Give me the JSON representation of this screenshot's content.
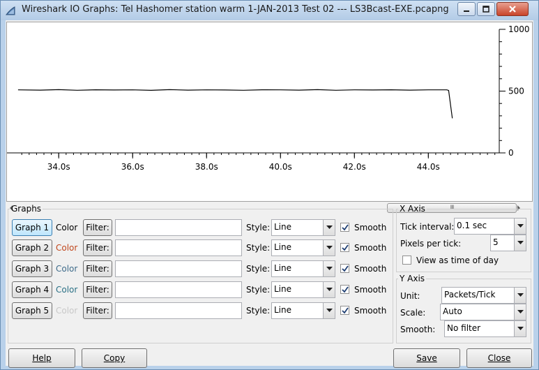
{
  "window": {
    "title": "Wireshark IO Graphs: Tel Hashomer station warm 1-JAN-2013 Test 02 --- LS3Bcast-EXE.pcapng",
    "minimize_icon": "minimize-icon",
    "maximize_icon": "maximize-icon",
    "close_icon": "close-icon"
  },
  "chart_data": {
    "type": "line",
    "x_ticks": [
      "34.0s",
      "36.0s",
      "38.0s",
      "40.0s",
      "42.0s",
      "44.0s"
    ],
    "y_ticks": [
      "1000",
      "500",
      "0"
    ],
    "xlim": [
      32.6,
      45.9
    ],
    "ylim": [
      0,
      1000
    ],
    "series": [
      {
        "color": "#000000",
        "x": [
          32.9,
          33.5,
          34.0,
          34.5,
          35.0,
          35.5,
          36.0,
          36.5,
          37.0,
          37.5,
          38.0,
          38.5,
          39.0,
          39.5,
          40.0,
          40.5,
          41.0,
          41.5,
          42.0,
          42.5,
          43.0,
          43.5,
          44.0,
          44.5,
          44.55,
          44.65
        ],
        "y": [
          510,
          508,
          512,
          507,
          511,
          509,
          510,
          506,
          512,
          508,
          510,
          509,
          507,
          511,
          510,
          508,
          512,
          507,
          510,
          509,
          511,
          508,
          510,
          510,
          505,
          280
        ]
      }
    ]
  },
  "scrollbar": {
    "thumb_grip": "III"
  },
  "graphs": {
    "legend": "Graphs",
    "color_label": "Color",
    "filter_label": "Filter:",
    "style_label": "Style:",
    "smooth_label": "Smooth",
    "rows": [
      {
        "button": "Graph 1",
        "color": "#000000",
        "filter": "",
        "style": "Line",
        "smooth": true
      },
      {
        "button": "Graph 2",
        "color": "#c0461c",
        "filter": "",
        "style": "Line",
        "smooth": true
      },
      {
        "button": "Graph 3",
        "color": "#3e6b8a",
        "filter": "",
        "style": "Line",
        "smooth": true
      },
      {
        "button": "Graph 4",
        "color": "#2a7085",
        "filter": "",
        "style": "Line",
        "smooth": true
      },
      {
        "button": "Graph 5",
        "color": "#c8c8c8",
        "filter": "",
        "style": "Line",
        "smooth": true
      }
    ]
  },
  "x_axis": {
    "legend": "X Axis",
    "tick_interval_label": "Tick interval:",
    "tick_interval_value": "0.1 sec",
    "pixels_per_tick_label": "Pixels per tick:",
    "pixels_per_tick_value": "5",
    "view_time_of_day_label": "View as time of day",
    "view_time_of_day": false
  },
  "y_axis": {
    "legend": "Y Axis",
    "unit_label": "Unit:",
    "unit_value": "Packets/Tick",
    "scale_label": "Scale:",
    "scale_value": "Auto",
    "smooth_label": "Smooth:",
    "smooth_value": "No filter"
  },
  "footer": {
    "help": "Help",
    "copy": "Copy",
    "save": "Save",
    "close": "Close"
  }
}
